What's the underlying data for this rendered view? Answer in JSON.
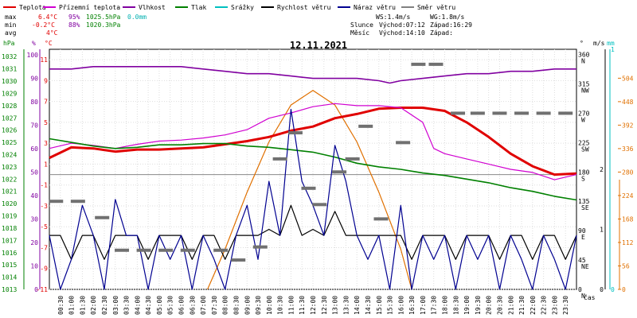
{
  "legend": [
    {
      "label": "Teplota",
      "color": "#e00000"
    },
    {
      "label": "Přízemní teplota",
      "color": "#d000d0"
    },
    {
      "label": "Vlhkost",
      "color": "#8000a0"
    },
    {
      "label": "Tlak",
      "color": "#008000"
    },
    {
      "label": "Srážky",
      "color": "#00c0c0"
    },
    {
      "label": "Rychlost větru",
      "color": "#000000"
    },
    {
      "label": "Náraz větru",
      "color": "#000090"
    },
    {
      "label": "Směr větru",
      "color": "#808080"
    }
  ],
  "stats": {
    "max": {
      "label": "max",
      "temp": "6.4°C",
      "hum": "95%",
      "press": "1025.5hPa",
      "rain": "0.0mm"
    },
    "min": {
      "label": "min",
      "temp": "-0.2°C",
      "hum": "88%",
      "press": "1020.3hPa"
    },
    "avg": {
      "label": "avg",
      "temp": "4°C"
    }
  },
  "wind_info": {
    "ws": "WS:1.4m/s",
    "wg": "WG:1.8m/s"
  },
  "sun": {
    "label": "Slunce",
    "rise": "Východ:07:12",
    "set": "Západ:16:29"
  },
  "moon": {
    "label": "Měsíc",
    "rise": "Východ:14:10",
    "set": "Západ:"
  },
  "chart_data": {
    "type": "line",
    "title": "12.11.2021",
    "xlabel": "čas",
    "x_ticks": [
      "00:30",
      "01:00",
      "01:30",
      "02:00",
      "02:30",
      "03:00",
      "03:30",
      "04:00",
      "04:30",
      "05:00",
      "05:30",
      "06:00",
      "06:30",
      "07:00",
      "07:30",
      "08:00",
      "08:30",
      "09:00",
      "09:30",
      "10:00",
      "10:30",
      "11:00",
      "11:30",
      "12:00",
      "12:30",
      "13:00",
      "13:30",
      "14:00",
      "14:30",
      "15:00",
      "15:30",
      "16:00",
      "16:30",
      "17:00",
      "17:30",
      "18:00",
      "18:30",
      "19:00",
      "19:30",
      "20:00",
      "20:30",
      "21:00",
      "21:30",
      "22:00",
      "22:30",
      "23:00",
      "23:30"
    ],
    "axes": {
      "hpa": {
        "label": "hPa",
        "color": "#008000",
        "ticks": [
          1013,
          1014,
          1015,
          1016,
          1017,
          1018,
          1019,
          1020,
          1021,
          1022,
          1023,
          1024,
          1025,
          1026,
          1027,
          1028,
          1029,
          1030,
          1031,
          1032
        ],
        "range": [
          1013,
          1032.6
        ]
      },
      "percent": {
        "label": "%",
        "color": "#8000a0",
        "ticks": [
          0,
          10,
          20,
          30,
          40,
          50,
          60,
          70,
          80,
          90,
          100
        ],
        "range": [
          0,
          102.4
        ]
      },
      "temp": {
        "label": "°C",
        "color": "#e00000",
        "ticks": [
          -11,
          -9,
          -7,
          -5,
          -3,
          -1,
          1,
          3,
          5,
          7,
          9,
          11
        ],
        "range": [
          -11,
          12
        ],
        "zero_line": 0
      },
      "direction": {
        "label": "°",
        "ticks": [
          "0",
          "45",
          "90",
          "135",
          "180",
          "225",
          "270",
          "315",
          "360"
        ],
        "ticks_num": [
          0,
          45,
          90,
          135,
          180,
          225,
          270,
          315,
          360
        ],
        "dir_labels": [
          "N",
          "NE",
          "E",
          "SE",
          "S",
          "SW",
          "W",
          "NW",
          "N"
        ],
        "range": [
          0,
          368
        ]
      },
      "wind": {
        "label": "m/s",
        "ticks": [
          0,
          1,
          2
        ],
        "range": [
          0,
          4
        ]
      },
      "rain": {
        "label": "mm",
        "color": "#00c0c0",
        "ticks": [
          0,
          1
        ],
        "range": [
          0,
          1
        ]
      },
      "solar": {
        "color": "#e07000",
        "ticks": [
          0,
          56,
          112,
          168,
          224,
          280,
          336,
          392,
          448,
          504
        ],
        "range": [
          0,
          573
        ]
      }
    },
    "series": [
      {
        "name": "Teplota",
        "color": "#e00000",
        "axis": "temp",
        "x": [
          0,
          1,
          2,
          3,
          4,
          5,
          6,
          7,
          8,
          9,
          10,
          11,
          12,
          13,
          14,
          15,
          16,
          17,
          18,
          19,
          20,
          21,
          22,
          23,
          24
        ],
        "y": [
          1.6,
          2.6,
          2.5,
          2.2,
          2.4,
          2.4,
          2.5,
          2.6,
          2.9,
          3.2,
          3.6,
          4.2,
          4.6,
          5.4,
          5.8,
          6.3,
          6.4,
          6.4,
          6.1,
          5.0,
          3.6,
          2.0,
          0.8,
          0.0,
          0.1
        ]
      },
      {
        "name": "Přízemní teplota",
        "color": "#d000d0",
        "axis": "temp",
        "x": [
          0,
          1,
          2,
          3,
          4,
          5,
          6,
          7,
          8,
          9,
          10,
          11,
          12,
          13,
          14,
          15,
          16,
          17,
          17.5,
          18,
          19,
          20,
          21,
          22,
          23,
          24
        ],
        "y": [
          2.5,
          3.0,
          2.8,
          2.5,
          2.9,
          3.2,
          3.3,
          3.5,
          3.8,
          4.3,
          5.4,
          5.9,
          6.5,
          6.8,
          6.6,
          6.6,
          6.4,
          5.0,
          2.5,
          2.0,
          1.5,
          1.0,
          0.5,
          0.2,
          -0.5,
          0.0
        ]
      },
      {
        "name": "Vlhkost",
        "color": "#8000a0",
        "axis": "percent",
        "x": [
          0,
          1,
          2,
          3,
          4,
          5,
          6,
          7,
          8,
          9,
          10,
          11,
          12,
          13,
          14,
          15,
          15.5,
          16,
          17,
          18,
          19,
          20,
          21,
          22,
          23,
          24
        ],
        "y": [
          94,
          94,
          95,
          95,
          95,
          95,
          95,
          94,
          93,
          92,
          92,
          91,
          90,
          90,
          90,
          89,
          88,
          89,
          90,
          91,
          92,
          92,
          93,
          93,
          94,
          94
        ]
      },
      {
        "name": "Tlak",
        "color": "#008000",
        "axis": "hpa",
        "x": [
          0,
          1,
          2,
          3,
          4,
          5,
          6,
          7,
          8,
          9,
          10,
          11,
          12,
          13,
          14,
          15,
          16,
          17,
          18,
          19,
          20,
          21,
          22,
          23,
          24
        ],
        "y": [
          1025.3,
          1025.0,
          1024.7,
          1024.5,
          1024.6,
          1024.8,
          1024.8,
          1024.9,
          1024.9,
          1024.7,
          1024.6,
          1024.4,
          1024.2,
          1023.8,
          1023.3,
          1023.0,
          1022.8,
          1022.5,
          1022.3,
          1022.0,
          1021.7,
          1021.3,
          1021.0,
          1020.6,
          1020.3
        ]
      },
      {
        "name": "Rychlost větru",
        "color": "#000000",
        "axis": "wind",
        "x": [
          0,
          0.5,
          1,
          1.5,
          2,
          2.5,
          3,
          3.5,
          4,
          4.5,
          5,
          5.5,
          6,
          6.5,
          7,
          7.5,
          8,
          8.5,
          9,
          9.5,
          10,
          10.5,
          11,
          11.5,
          12,
          12.5,
          13,
          13.5,
          14,
          14.5,
          15,
          15.5,
          16,
          16.5,
          17,
          17.5,
          18,
          18.5,
          19,
          19.5,
          20,
          20.5,
          21,
          21.5,
          22,
          22.5,
          23,
          23.5,
          24
        ],
        "y": [
          0.9,
          0.9,
          0.5,
          0.9,
          0.9,
          0.5,
          0.9,
          0.9,
          0.9,
          0.5,
          0.9,
          0.9,
          0.9,
          0.5,
          0.9,
          0.9,
          0.5,
          0.9,
          0.9,
          0.9,
          1.0,
          0.9,
          1.4,
          0.9,
          1.0,
          0.9,
          1.3,
          0.9,
          0.9,
          0.9,
          0.9,
          0.9,
          0.9,
          0.5,
          0.9,
          0.9,
          0.9,
          0.5,
          0.9,
          0.9,
          0.9,
          0.5,
          0.9,
          0.9,
          0.5,
          0.9,
          0.9,
          0.5,
          0.9
        ]
      },
      {
        "name": "Náraz větru",
        "color": "#000090",
        "axis": "wind",
        "x": [
          0,
          0.5,
          1,
          1.5,
          2,
          2.5,
          3,
          3.5,
          4,
          4.5,
          5,
          5.5,
          6,
          6.5,
          7,
          7.5,
          8,
          8.5,
          9,
          9.5,
          10,
          10.5,
          11,
          11.5,
          12,
          12.5,
          13,
          13.5,
          14,
          14.5,
          15,
          15.5,
          16,
          16.5,
          17,
          17.5,
          18,
          18.5,
          19,
          19.5,
          20,
          20.5,
          21,
          21.5,
          22,
          22.5,
          23,
          23.5,
          24
        ],
        "y": [
          0.9,
          0,
          0.5,
          1.4,
          0.9,
          0,
          1.5,
          0.9,
          0.9,
          0,
          0.9,
          0.5,
          0.9,
          0,
          0.9,
          0.5,
          0,
          0.9,
          1.4,
          0.5,
          1.8,
          0.9,
          3.0,
          1.8,
          1.4,
          0.9,
          2.4,
          1.8,
          0.9,
          0.5,
          0.9,
          0,
          1.4,
          0,
          0.9,
          0.5,
          0.9,
          0,
          0.9,
          0.5,
          0.9,
          0,
          0.9,
          0.5,
          0,
          0.9,
          0.5,
          0,
          0.9
        ]
      },
      {
        "name": "Směr větru",
        "color": "#707070",
        "axis": "direction",
        "x": [
          0.3,
          1.3,
          2.4,
          3.3,
          4.3,
          5.3,
          6.3,
          7.8,
          8.6,
          9.6,
          10.5,
          11.2,
          11.8,
          12.3,
          13.2,
          13.8,
          14.4,
          15.1,
          16.1,
          16.8,
          17.6,
          18.6,
          19.5,
          20.5,
          21.5,
          22.5,
          23.5
        ],
        "y": [
          135,
          135,
          110,
          60,
          60,
          60,
          60,
          60,
          45,
          65,
          200,
          240,
          155,
          130,
          180,
          200,
          250,
          108,
          225,
          345,
          345,
          270,
          270,
          270,
          270,
          270,
          270
        ]
      }
    ],
    "solar": {
      "x": [
        7.2,
        8,
        9,
        10,
        11,
        12,
        13,
        14,
        15,
        16,
        16.5
      ],
      "y": [
        0,
        96,
        232,
        352,
        440,
        475,
        440,
        352,
        232,
        96,
        0
      ]
    }
  }
}
